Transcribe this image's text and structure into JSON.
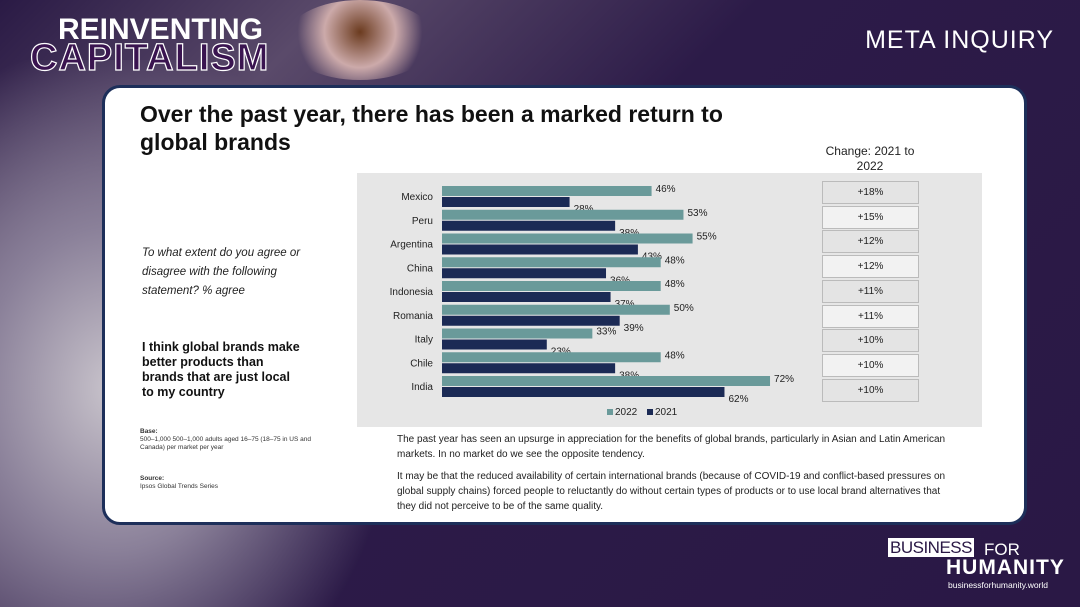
{
  "header": {
    "logo_line1": "REINVENTING",
    "logo_line2": "CAPITALISM",
    "section": "META INQUIRY"
  },
  "slide": {
    "title": "Over the past year, there has been a marked return to global brands",
    "question": "To what extent do you agree or disagree with the following statement? % agree",
    "statement": "I think global brands make better products than brands that are just local to my country",
    "base_label": "Base:",
    "base_text": "500–1,000 500–1,000 adults aged 16–75 (18–75 in US and Canada) per market per year",
    "source_label": "Source:",
    "source_text": "Ipsos Global Trends Series",
    "note1": "The past year has seen an upsurge in appreciation for the benefits of global brands, particularly in Asian and Latin American markets. In no market do we see the opposite tendency.",
    "note2": "It may be that the reduced availability of certain international brands (because of COVID-19 and conflict-based pressures on global supply chains) forced people to reluctantly do without certain types of products or to use local brand alternatives that they did not perceive to be of the same quality.",
    "change_title": "Change: 2021 to 2022"
  },
  "chart_data": {
    "type": "bar",
    "orientation": "horizontal",
    "grid": false,
    "legend_position": "bottom",
    "categories": [
      "Mexico",
      "Peru",
      "Argentina",
      "China",
      "Indonesia",
      "Romania",
      "Italy",
      "Chile",
      "India"
    ],
    "series": [
      {
        "name": "2022",
        "color": "#6a9a9a",
        "values": [
          46,
          53,
          55,
          48,
          48,
          50,
          33,
          48,
          72
        ]
      },
      {
        "name": "2021",
        "color": "#1b2a55",
        "values": [
          28,
          38,
          43,
          36,
          37,
          39,
          23,
          38,
          62
        ]
      }
    ],
    "change": [
      "+18%",
      "+15%",
      "+12%",
      "+12%",
      "+11%",
      "+11%",
      "+10%",
      "+10%",
      "+10%"
    ],
    "value_suffix": "%"
  },
  "footer": {
    "brand_box": "BUSINESS",
    "brand_for": "FOR",
    "brand_humanity": "HUMANITY",
    "url": "businessforhumanity.world"
  }
}
